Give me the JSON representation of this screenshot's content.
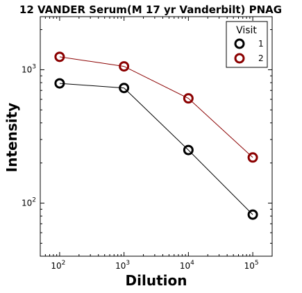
{
  "chart_data": {
    "type": "line",
    "title": "12 VANDER Serum(M 17 yr Vanderbilt) PNAG",
    "xlabel": "Dilution",
    "ylabel": "Intensity",
    "x_scale": "log",
    "y_scale": "log",
    "xlim": [
      50,
      200000
    ],
    "ylim": [
      40,
      2500
    ],
    "x_ticks": [
      {
        "value": 100,
        "base": "10",
        "exp": "2"
      },
      {
        "value": 1000,
        "base": "10",
        "exp": "3"
      },
      {
        "value": 10000,
        "base": "10",
        "exp": "4"
      },
      {
        "value": 100000,
        "base": "10",
        "exp": "5"
      }
    ],
    "y_ticks": [
      {
        "value": 100,
        "base": "10",
        "exp": "2"
      },
      {
        "value": 1000,
        "base": "10",
        "exp": "3"
      }
    ],
    "grid": false,
    "legend": {
      "title": "Visit",
      "position": "top-right"
    },
    "x": [
      100,
      1000,
      10000,
      100000
    ],
    "series": [
      {
        "name": "1",
        "color": "#000000",
        "values": [
          790,
          730,
          250,
          82
        ]
      },
      {
        "name": "2",
        "color": "#8b0000",
        "values": [
          1250,
          1060,
          610,
          220
        ]
      }
    ]
  }
}
